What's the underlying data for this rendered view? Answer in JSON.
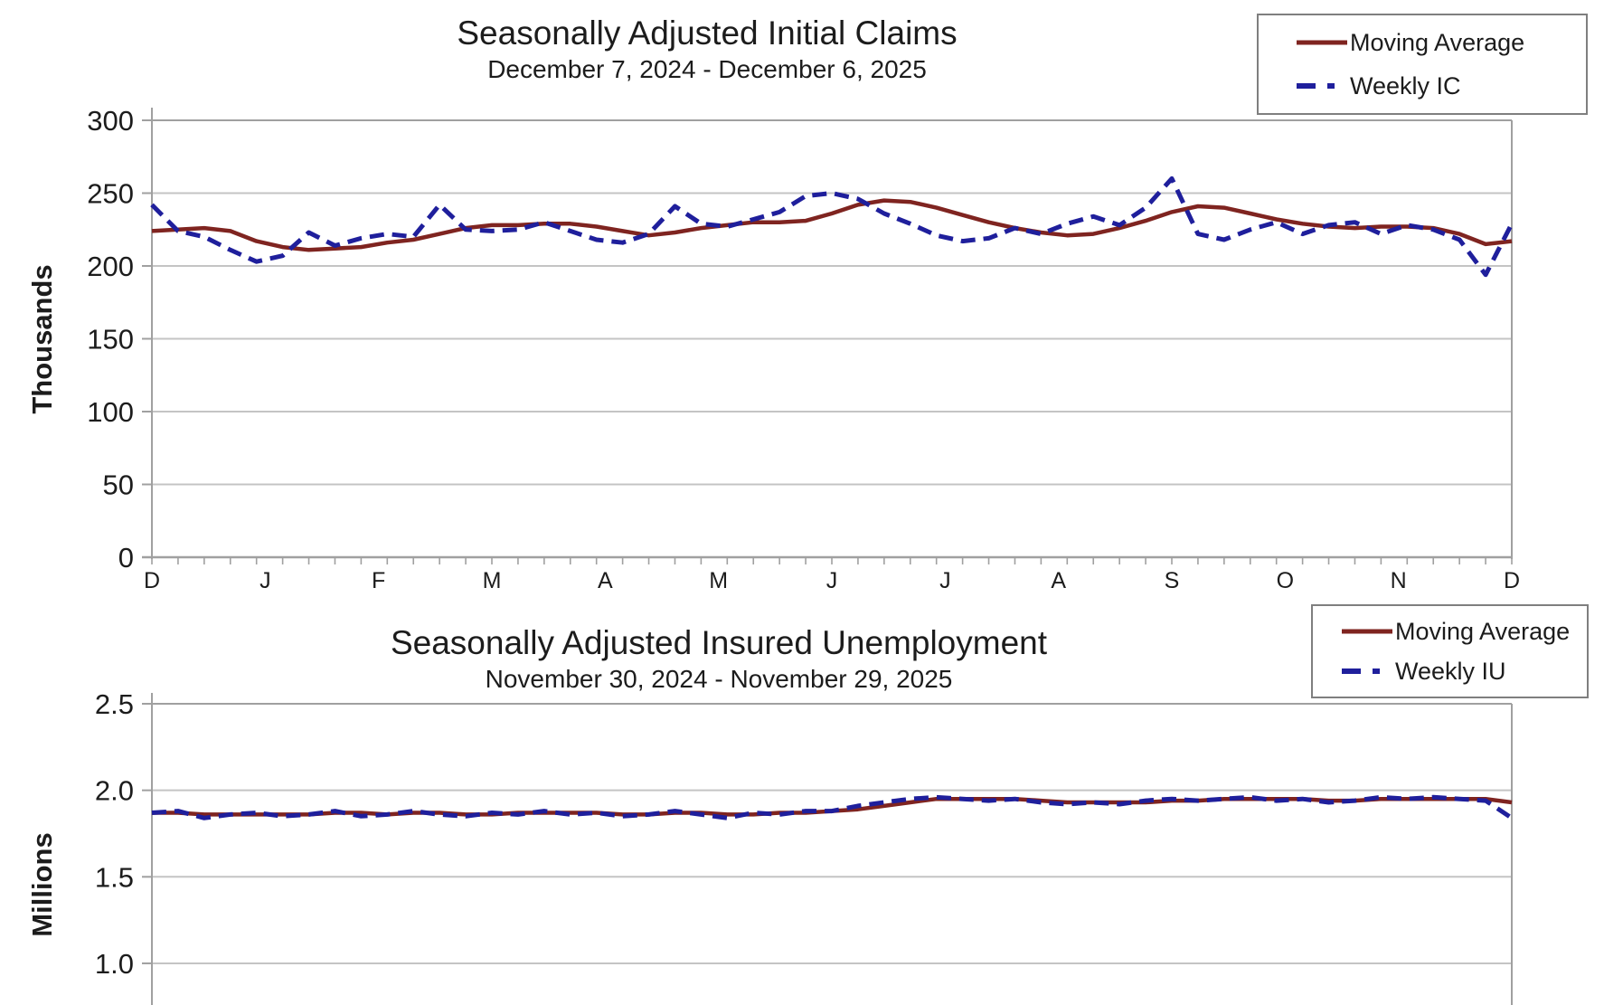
{
  "page": {
    "background": "#ffffff"
  },
  "colors": {
    "moving_average_line": "#7f2420",
    "weekly_line": "#1f1f9c",
    "gridline": "#c4c4c4",
    "axis": "#a0a0a0",
    "text": "#1c1c1c",
    "legend_border": "#7f7f7f"
  },
  "chart_data": [
    {
      "type": "line",
      "title": "Seasonally Adjusted Initial Claims",
      "subtitle": "December 7, 2024 - December 6, 2025",
      "xlabel": "",
      "ylabel": "Thousands",
      "ylim": [
        0,
        300
      ],
      "grid": true,
      "legend_position": "top-right",
      "y_ticks": [
        {
          "label": "300",
          "value": 300
        },
        {
          "label": "250",
          "value": 250
        },
        {
          "label": "200",
          "value": 200
        },
        {
          "label": "150",
          "value": 150
        },
        {
          "label": "100",
          "value": 100
        },
        {
          "label": "50",
          "value": 50
        },
        {
          "label": "0",
          "value": 0
        }
      ],
      "x_tick_labels": [
        "D",
        "J",
        "F",
        "M",
        "A",
        "M",
        "J",
        "J",
        "A",
        "S",
        "O",
        "N",
        "D"
      ],
      "weeks": 53,
      "series": [
        {
          "name": "Moving Average",
          "style": "solid",
          "color": "#7f2420",
          "values": [
            224,
            225,
            226,
            224,
            217,
            213,
            211,
            212,
            213,
            216,
            218,
            222,
            226,
            228,
            228,
            229,
            229,
            227,
            224,
            221,
            223,
            226,
            228,
            230,
            230,
            231,
            236,
            242,
            245,
            244,
            240,
            235,
            230,
            226,
            223,
            221,
            222,
            226,
            231,
            237,
            241,
            240,
            236,
            232,
            229,
            227,
            226,
            227,
            227,
            226,
            222,
            215,
            217
          ]
        },
        {
          "name": "Weekly IC",
          "style": "dashed",
          "color": "#1f1f9c",
          "values": [
            242,
            224,
            220,
            211,
            203,
            207,
            223,
            214,
            219,
            222,
            220,
            242,
            225,
            224,
            225,
            230,
            224,
            218,
            216,
            222,
            241,
            229,
            227,
            232,
            237,
            248,
            250,
            246,
            236,
            229,
            221,
            217,
            219,
            226,
            222,
            229,
            234,
            228,
            240,
            260,
            222,
            218,
            225,
            230,
            222,
            228,
            230,
            222,
            228,
            225,
            218,
            194,
            229
          ]
        }
      ]
    },
    {
      "type": "line",
      "title": "Seasonally Adjusted Insured Unemployment",
      "subtitle": "November 30, 2024 - November 29, 2025",
      "xlabel": "",
      "ylabel": "Millions",
      "ylim_visible": [
        1.0,
        2.5
      ],
      "grid": true,
      "legend_position": "top-right",
      "bottom_cut_off": true,
      "y_ticks": [
        {
          "label": "2.5",
          "value": 2.5
        },
        {
          "label": "2.0",
          "value": 2.0
        },
        {
          "label": "1.5",
          "value": 1.5
        },
        {
          "label": "1.0",
          "value": 1.0
        }
      ],
      "weeks": 53,
      "series": [
        {
          "name": "Moving Average",
          "style": "solid",
          "color": "#7f2420",
          "values": [
            1.87,
            1.87,
            1.86,
            1.86,
            1.86,
            1.86,
            1.86,
            1.87,
            1.87,
            1.86,
            1.87,
            1.87,
            1.86,
            1.86,
            1.87,
            1.87,
            1.87,
            1.87,
            1.86,
            1.86,
            1.87,
            1.87,
            1.86,
            1.86,
            1.87,
            1.87,
            1.88,
            1.89,
            1.91,
            1.93,
            1.95,
            1.95,
            1.95,
            1.95,
            1.94,
            1.93,
            1.93,
            1.93,
            1.93,
            1.94,
            1.94,
            1.95,
            1.95,
            1.95,
            1.95,
            1.94,
            1.94,
            1.95,
            1.95,
            1.95,
            1.95,
            1.95,
            1.93
          ]
        },
        {
          "name": "Weekly IU",
          "style": "dashed",
          "color": "#1f1f9c",
          "values": [
            1.87,
            1.88,
            1.84,
            1.86,
            1.87,
            1.85,
            1.86,
            1.88,
            1.85,
            1.86,
            1.88,
            1.86,
            1.85,
            1.87,
            1.86,
            1.88,
            1.86,
            1.87,
            1.85,
            1.86,
            1.88,
            1.86,
            1.84,
            1.87,
            1.86,
            1.88,
            1.88,
            1.91,
            1.93,
            1.95,
            1.96,
            1.95,
            1.94,
            1.95,
            1.93,
            1.92,
            1.93,
            1.92,
            1.94,
            1.95,
            1.94,
            1.95,
            1.96,
            1.94,
            1.95,
            1.93,
            1.94,
            1.96,
            1.95,
            1.96,
            1.95,
            1.94,
            1.84
          ]
        }
      ]
    }
  ]
}
